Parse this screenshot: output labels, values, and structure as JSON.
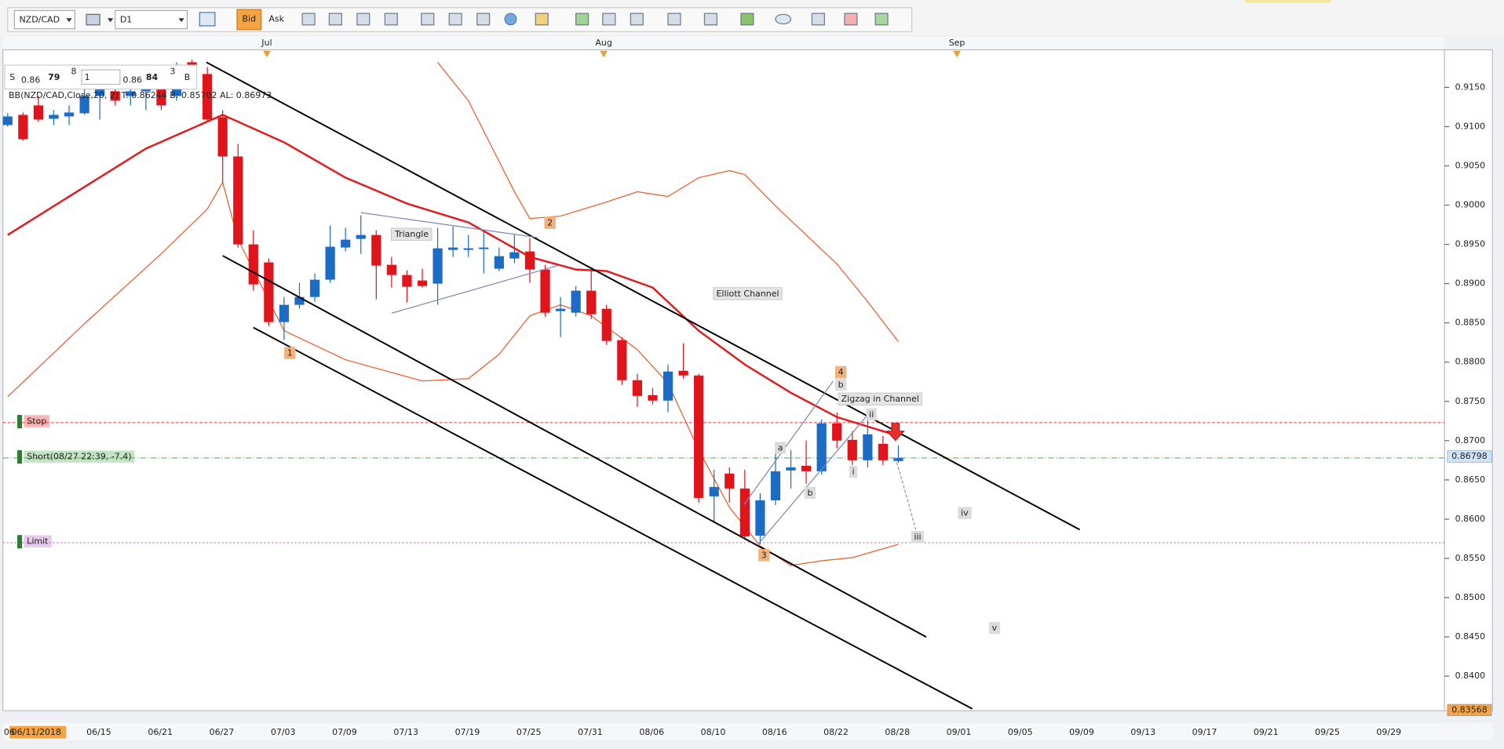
{
  "toolbar": {
    "symbol": "NZD/CAD",
    "timeframe": "D1",
    "bid": "Bid",
    "ask": "Ask"
  },
  "quote": {
    "sell_label": "S",
    "sell_big": "0.86",
    "sell_pips": "79",
    "sell_frac": "8",
    "lot": "1",
    "buy_big": "0.86",
    "buy_pips": "84",
    "buy_frac": "3",
    "buy_label": "B"
  },
  "chart_data": {
    "type": "candlestick",
    "indicator_label": "BB(NZD/CAD,Close,20, 2)  T: 0.86244  B: 0.85702  AL: 0.86973",
    "months": [
      "Jul",
      "Aug",
      "Sep"
    ],
    "cursor_date": "06/11/2018",
    "x_tick_labels": [
      "06",
      "06/15",
      "06/21",
      "06/27",
      "07/03",
      "07/09",
      "07/13",
      "07/19",
      "07/25",
      "07/31",
      "08/06",
      "08/10",
      "08/16",
      "08/22",
      "08/28",
      "09/01",
      "09/05",
      "09/09",
      "09/13",
      "09/17",
      "09/21",
      "09/25",
      "09/29"
    ],
    "up_color": "#1c6cc6",
    "down_color": "#e0141b",
    "candles": {
      "open": [
        0.9102,
        0.9115,
        0.9127,
        0.911,
        0.9113,
        0.9117,
        0.9139,
        0.9145,
        0.9139,
        0.9145,
        0.9154,
        0.9139,
        0.9182,
        0.9167,
        0.9112,
        0.9062,
        0.895,
        0.8927,
        0.8851,
        0.8873,
        0.8883,
        0.8905,
        0.8946,
        0.8957,
        0.8962,
        0.8924,
        0.8911,
        0.8904,
        0.89,
        0.8943,
        0.8943,
        0.8944,
        0.8919,
        0.8932,
        0.8941,
        0.8918,
        0.8865,
        0.8863,
        0.8891,
        0.8868,
        0.8828,
        0.8777,
        0.8758,
        0.8751,
        0.8789,
        0.8783,
        0.8629,
        0.8658,
        0.8639,
        0.8579,
        0.8624,
        0.8662,
        0.8668,
        0.8661,
        0.8722,
        0.8701,
        0.8675,
        0.8696,
        0.8674
      ],
      "high": [
        0.9117,
        0.9118,
        0.9139,
        0.9121,
        0.9127,
        0.9151,
        0.917,
        0.9154,
        0.9154,
        0.9163,
        0.9163,
        0.9182,
        0.9185,
        0.9176,
        0.9121,
        0.9078,
        0.8968,
        0.8932,
        0.8883,
        0.8901,
        0.8913,
        0.8974,
        0.8971,
        0.8987,
        0.8968,
        0.8934,
        0.8917,
        0.8919,
        0.8971,
        0.8973,
        0.8962,
        0.8966,
        0.8946,
        0.8962,
        0.8958,
        0.8924,
        0.8883,
        0.8897,
        0.8919,
        0.8873,
        0.8832,
        0.8785,
        0.8767,
        0.8797,
        0.8824,
        0.8785,
        0.8663,
        0.8666,
        0.8663,
        0.8633,
        0.8694,
        0.8688,
        0.87,
        0.8727,
        0.8736,
        0.8712,
        0.8729,
        0.8706,
        0.8694
      ],
      "low": [
        0.91,
        0.9082,
        0.9106,
        0.9102,
        0.9102,
        0.9115,
        0.9109,
        0.9127,
        0.9127,
        0.9121,
        0.9121,
        0.9133,
        0.9151,
        0.9106,
        0.9029,
        0.8946,
        0.8891,
        0.8846,
        0.8828,
        0.8868,
        0.8877,
        0.8901,
        0.8941,
        0.8938,
        0.888,
        0.8895,
        0.8876,
        0.8895,
        0.8873,
        0.8934,
        0.8934,
        0.8913,
        0.8916,
        0.8926,
        0.8901,
        0.8858,
        0.8832,
        0.8858,
        0.8855,
        0.8822,
        0.8771,
        0.8743,
        0.8746,
        0.8736,
        0.8779,
        0.8621,
        0.8596,
        0.8621,
        0.8575,
        0.8568,
        0.8618,
        0.8639,
        0.8645,
        0.8657,
        0.869,
        0.8669,
        0.8666,
        0.8669,
        0.8672
      ],
      "close": [
        0.9113,
        0.9084,
        0.9109,
        0.9115,
        0.9118,
        0.9139,
        0.9149,
        0.9133,
        0.9145,
        0.9151,
        0.9127,
        0.9176,
        0.9163,
        0.9109,
        0.9062,
        0.895,
        0.8899,
        0.8851,
        0.8873,
        0.8883,
        0.8905,
        0.8947,
        0.8956,
        0.8962,
        0.8923,
        0.8911,
        0.8896,
        0.8897,
        0.8945,
        0.8946,
        0.8945,
        0.8946,
        0.8935,
        0.894,
        0.8918,
        0.8863,
        0.8868,
        0.8891,
        0.8861,
        0.8827,
        0.8777,
        0.8757,
        0.8751,
        0.8788,
        0.8783,
        0.8627,
        0.8641,
        0.8639,
        0.8578,
        0.8624,
        0.8661,
        0.8666,
        0.8661,
        0.8722,
        0.87,
        0.8675,
        0.8708,
        0.8675,
        0.8678
      ]
    },
    "bands": [
      {
        "color": "#e3191b",
        "x": [
          0,
          4,
          9,
          14,
          18,
          22,
          26,
          30,
          34,
          37,
          39,
          42,
          45,
          48,
          51,
          54,
          58
        ],
        "values": [
          0.8962,
          0.9011,
          0.9072,
          0.9115,
          0.908,
          0.9035,
          0.9002,
          0.8978,
          0.8934,
          0.8918,
          0.8916,
          0.8895,
          0.884,
          0.8797,
          0.8761,
          0.873,
          0.8706
        ]
      },
      {
        "color": "#ee5a2a",
        "x": [
          28,
          30,
          33,
          34,
          36,
          39,
          41,
          43,
          45,
          47,
          48,
          50,
          52,
          54,
          56,
          58
        ],
        "values": [
          0.9182,
          0.9133,
          0.9017,
          0.8983,
          0.8986,
          0.9004,
          0.9017,
          0.9011,
          0.9035,
          0.9044,
          0.9039,
          0.8999,
          0.8962,
          0.8925,
          0.8877,
          0.8826
        ]
      },
      {
        "color": "#ee5a2a",
        "x": [
          0,
          5,
          10,
          13,
          14,
          15,
          18,
          22,
          27,
          30,
          32,
          34,
          36,
          38,
          41,
          43,
          45,
          47,
          49,
          51,
          53,
          55,
          58
        ],
        "values": [
          0.8756,
          0.8849,
          0.8938,
          0.8995,
          0.9029,
          0.8956,
          0.884,
          0.8803,
          0.8776,
          0.8779,
          0.881,
          0.8859,
          0.8873,
          0.8859,
          0.8816,
          0.8773,
          0.8688,
          0.8615,
          0.8566,
          0.8541,
          0.8547,
          0.8551,
          0.8568
        ]
      }
    ],
    "ylim": [
      0.8356,
      0.9182
    ],
    "yticks": [
      {
        "value": 0.915,
        "label": "0.9150"
      },
      {
        "value": 0.91,
        "label": "0.9100"
      },
      {
        "value": 0.905,
        "label": "0.9050"
      },
      {
        "value": 0.9,
        "label": "0.9000"
      },
      {
        "value": 0.895,
        "label": "0.8950"
      },
      {
        "value": 0.89,
        "label": "0.8900"
      },
      {
        "value": 0.885,
        "label": "0.8850"
      },
      {
        "value": 0.88,
        "label": "0.8800"
      },
      {
        "value": 0.875,
        "label": "0.8750"
      },
      {
        "value": 0.87,
        "label": "0.8700"
      },
      {
        "value": 0.865,
        "label": "0.8650"
      },
      {
        "value": 0.86,
        "label": "0.8600"
      },
      {
        "value": 0.855,
        "label": "0.8550"
      },
      {
        "value": 0.85,
        "label": "0.8500"
      },
      {
        "value": 0.845,
        "label": "0.8450"
      },
      {
        "value": 0.84,
        "label": "0.8400"
      }
    ],
    "price_tags": [
      0.86798,
      0.83568
    ],
    "levels": [
      {
        "label": "Stop",
        "value": 0.8723,
        "color": "#f04848"
      },
      {
        "label": "Short(08/27 22:39, -7.4)",
        "value": 0.8678,
        "color": "#6cbf6c"
      },
      {
        "label": "Limit",
        "value": 0.857,
        "color": "#c77ad6"
      }
    ],
    "annotations": [
      "Triangle",
      "2",
      "1",
      "Elliott Channel",
      "4",
      "b",
      "Zigzag in Channel",
      "ii",
      "a",
      "i",
      "b",
      "iv",
      "iii",
      "3",
      "v"
    ]
  }
}
